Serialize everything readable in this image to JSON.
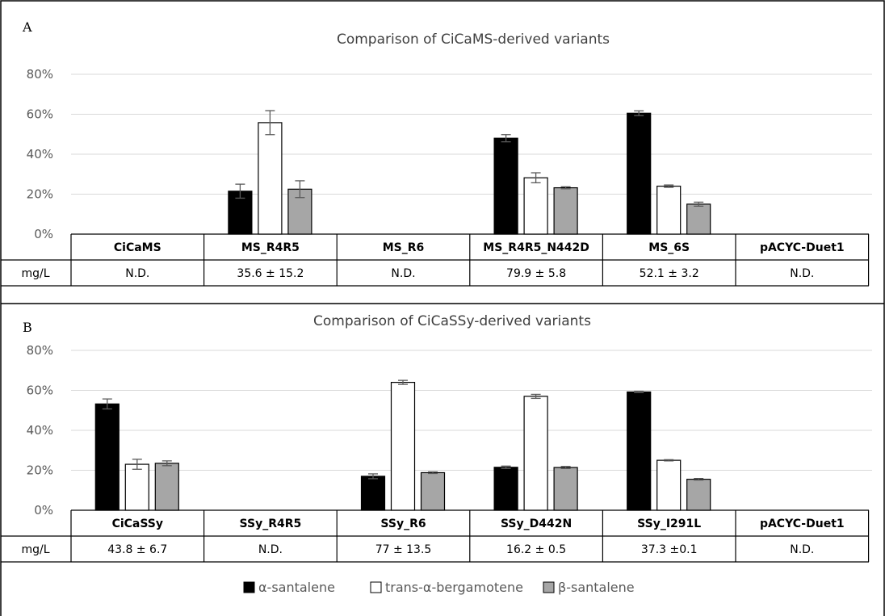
{
  "legend": [
    {
      "name": "α-santalene",
      "color": "#000000"
    },
    {
      "name": "trans-α-bergamotene",
      "color": "#ffffff"
    },
    {
      "name": "β-santalene",
      "color": "#a6a6a6"
    }
  ],
  "chart_data": [
    {
      "panel": "A",
      "type": "bar",
      "title": "Comparison of CiCaMS-derived variants",
      "ylim": [
        0,
        80
      ],
      "yticks": [
        "0%",
        "20%",
        "40%",
        "60%",
        "80%"
      ],
      "grid": true,
      "categories": [
        "CiCaMS",
        "MS_R4R5",
        "MS_R6",
        "MS_R4R5_N442D",
        "MS_6S",
        "pACYC-Duet1"
      ],
      "series": [
        {
          "name": "α-santalene",
          "color": "#000000",
          "values": [
            null,
            21.5,
            null,
            48.0,
            60.5,
            null
          ],
          "errors": [
            null,
            3.5,
            null,
            1.8,
            1.2,
            null
          ]
        },
        {
          "name": "trans-α-bergamotene",
          "color": "#ffffff",
          "values": [
            null,
            55.8,
            null,
            28.2,
            24.0,
            null
          ],
          "errors": [
            null,
            6.0,
            null,
            2.5,
            0.6,
            null
          ]
        },
        {
          "name": "β-santalene",
          "color": "#a6a6a6",
          "values": [
            null,
            22.5,
            null,
            23.2,
            15.0,
            null
          ],
          "errors": [
            null,
            4.2,
            null,
            0.5,
            1.0,
            null
          ]
        }
      ],
      "table": {
        "row_label": "mg/L",
        "values": [
          "N.D.",
          "35.6 ± 15.2",
          "N.D.",
          "79.9 ± 5.8",
          "52.1 ± 3.2",
          "N.D."
        ]
      }
    },
    {
      "panel": "B",
      "type": "bar",
      "title": "Comparison of CiCaSSy-derived variants",
      "ylim": [
        0,
        80
      ],
      "yticks": [
        "0%",
        "20%",
        "40%",
        "60%",
        "80%"
      ],
      "grid": true,
      "categories": [
        "CiCaSSy",
        "SSy_R4R5",
        "SSy_R6",
        "SSy_D442N",
        "SSy_I291L",
        "pACYC-Duet1"
      ],
      "series": [
        {
          "name": "α-santalene",
          "color": "#000000",
          "values": [
            53.2,
            null,
            17.0,
            21.5,
            59.2,
            null
          ],
          "errors": [
            2.5,
            null,
            1.2,
            0.6,
            0.3,
            null
          ]
        },
        {
          "name": "trans-α-bergamotene",
          "color": "#ffffff",
          "values": [
            23.0,
            null,
            64.0,
            57.0,
            25.0,
            null
          ],
          "errors": [
            2.5,
            null,
            1.0,
            1.0,
            0.3,
            null
          ]
        },
        {
          "name": "β-santalene",
          "color": "#a6a6a6",
          "values": [
            23.5,
            null,
            18.8,
            21.4,
            15.5,
            null
          ],
          "errors": [
            1.2,
            null,
            0.4,
            0.5,
            0.4,
            null
          ]
        }
      ],
      "table": {
        "row_label": "mg/L",
        "values": [
          "43.8  ± 6.7",
          "N.D.",
          "77 ± 13.5",
          "16.2 ± 0.5",
          "37.3 ±0.1",
          "N.D."
        ]
      }
    }
  ]
}
